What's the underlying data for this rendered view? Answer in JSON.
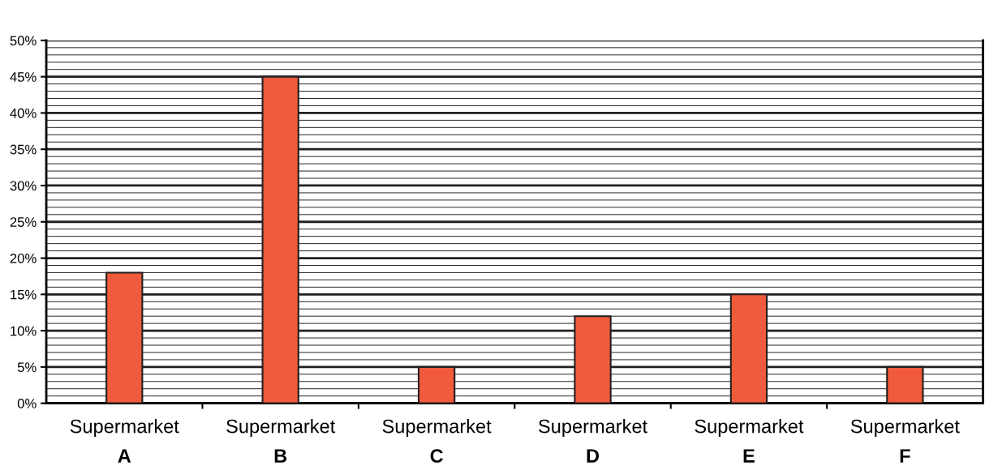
{
  "chart_data": {
    "type": "bar",
    "categories": [
      "Supermarket\nA",
      "Supermarket\nB",
      "Supermarket\nC",
      "Supermarket\nD",
      "Supermarket\nE",
      "Supermarket\nF"
    ],
    "values": [
      18,
      45,
      5,
      12,
      15,
      5
    ],
    "color": "#ef5b3c",
    "ylim": [
      0,
      50
    ],
    "yticks": [
      {
        "value": 0,
        "label": "0%"
      },
      {
        "value": 5,
        "label": "5%"
      },
      {
        "value": 10,
        "label": "10%"
      },
      {
        "value": 15,
        "label": "15%"
      },
      {
        "value": 20,
        "label": "20%"
      },
      {
        "value": 25,
        "label": "25%"
      },
      {
        "value": 30,
        "label": "30%"
      },
      {
        "value": 35,
        "label": "35%"
      },
      {
        "value": 40,
        "label": "40%"
      },
      {
        "value": 45,
        "label": "45%"
      },
      {
        "value": 50,
        "label": "50%"
      }
    ],
    "grid": "y"
  }
}
